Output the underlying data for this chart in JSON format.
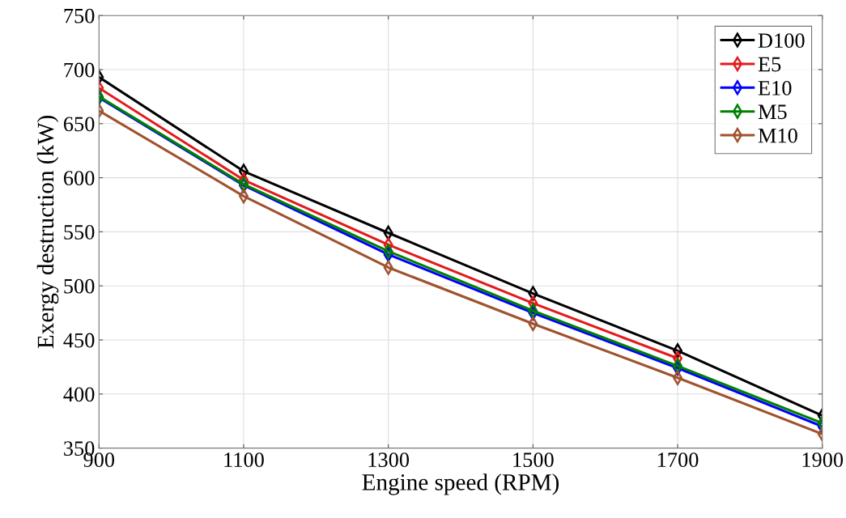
{
  "chart_data": {
    "type": "line",
    "xlabel": "Engine speed (RPM)",
    "ylabel": "Exergy destruction (kW)",
    "x": [
      900,
      1100,
      1300,
      1500,
      1700,
      1900
    ],
    "series": [
      {
        "name": "D100",
        "color": "#000000",
        "values": [
          693,
          606,
          549,
          493,
          440,
          380
        ]
      },
      {
        "name": "E5",
        "color": "#e41a1c",
        "values": [
          683,
          598,
          538,
          484,
          433,
          null
        ]
      },
      {
        "name": "E10",
        "color": "#0000ff",
        "values": [
          674,
          593,
          529,
          475,
          424,
          370
        ]
      },
      {
        "name": "M5",
        "color": "#008000",
        "values": [
          675,
          594,
          532,
          477,
          426,
          373
        ]
      },
      {
        "name": "M10",
        "color": "#a0522d",
        "values": [
          662,
          583,
          517,
          465,
          415,
          363
        ]
      }
    ],
    "xlim": [
      900,
      1900
    ],
    "xticks": [
      900,
      1100,
      1300,
      1500,
      1700,
      1900
    ],
    "ylim": [
      350,
      750
    ],
    "yticks": [
      350,
      400,
      450,
      500,
      550,
      600,
      650,
      700,
      750
    ],
    "grid": true,
    "legend": "top right",
    "marker": "diamond",
    "line_style": "solid"
  }
}
